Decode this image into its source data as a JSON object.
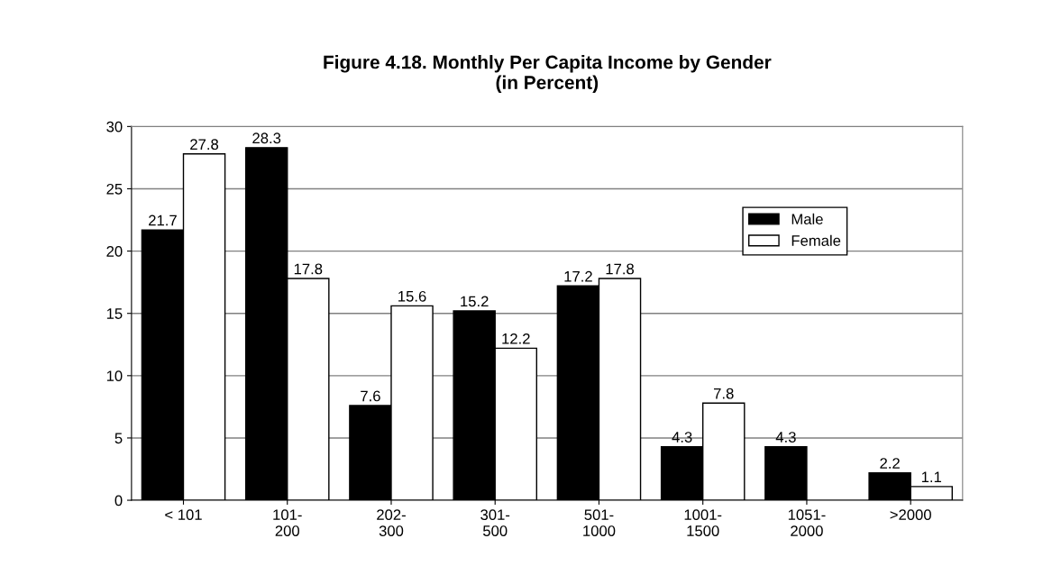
{
  "chart_data": {
    "type": "bar",
    "title": "Figure 4.18. Monthly Per Capita Income by Gender\n(in Percent)",
    "categories": [
      "< 101",
      "101-\n200",
      "202-\n300",
      "301-\n500",
      "501-\n1000",
      "1001-\n1500",
      "1051-\n2000",
      ">2000"
    ],
    "series": [
      {
        "name": "Male",
        "color": "#000000",
        "values": [
          21.7,
          28.3,
          7.6,
          15.2,
          17.2,
          4.3,
          4.3,
          2.2
        ]
      },
      {
        "name": "Female",
        "color": "#ffffff",
        "values": [
          27.8,
          17.8,
          15.6,
          12.2,
          17.8,
          7.8,
          null,
          1.1
        ]
      }
    ],
    "ylim": [
      0,
      30
    ],
    "yticks": [
      0,
      5,
      10,
      15,
      20,
      25,
      30
    ],
    "grid": "y",
    "legend": "right",
    "data_labels": true
  }
}
